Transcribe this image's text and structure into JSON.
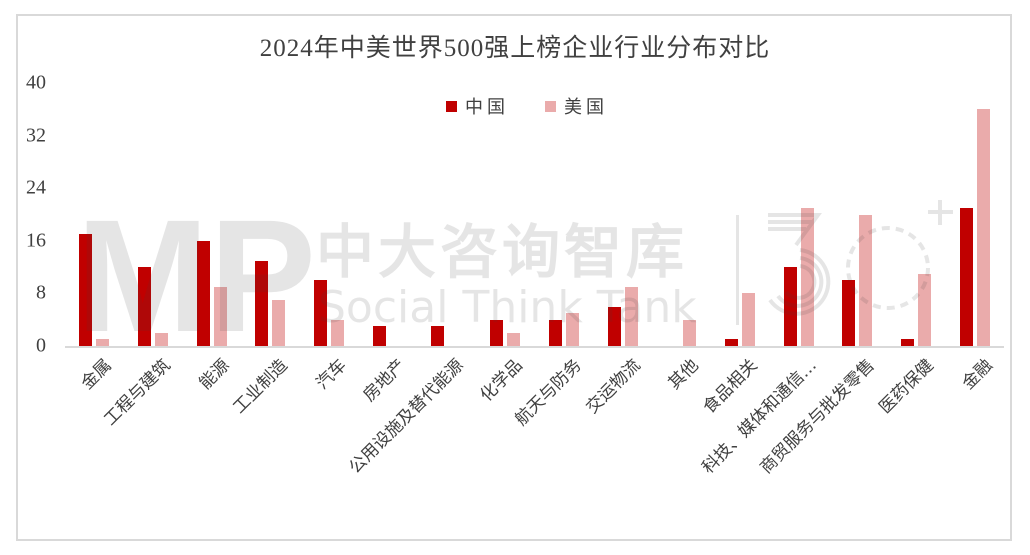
{
  "chart_data": {
    "type": "bar",
    "title": "2024年中美世界500强上榜企业行业分布对比",
    "xlabel": "",
    "ylabel": "",
    "ylim": [
      0,
      40
    ],
    "yticks": [
      0,
      8,
      16,
      24,
      32,
      40
    ],
    "grid": false,
    "legend_position": "top",
    "categories": [
      "金属",
      "工程与建筑",
      "能源",
      "工业制造",
      "汽车",
      "房地产",
      "公用设施及替代能源",
      "化学品",
      "航天与防务",
      "交运物流",
      "其他",
      "食品相关",
      "科技、媒体和通信…",
      "商贸服务与批发零售",
      "医药保健",
      "金融"
    ],
    "series": [
      {
        "name": "中国",
        "color": "#C00000",
        "values": [
          17,
          12,
          16,
          13,
          10,
          3,
          3,
          4,
          4,
          6,
          0,
          1,
          12,
          10,
          1,
          21
        ]
      },
      {
        "name": "美国",
        "color": "#EAABAB",
        "values": [
          1,
          2,
          9,
          7,
          4,
          0,
          0,
          2,
          5,
          9,
          4,
          8,
          21,
          20,
          11,
          36
        ]
      }
    ]
  },
  "legend": {
    "china_label": "中国",
    "us_label": "美国",
    "china_color": "#C00000",
    "us_color": "#EAABAB"
  },
  "watermark": {
    "logo_text": "MP",
    "cn_text": "中大咨询智库",
    "en_text": "Social Think Tank",
    "anniversary": "30+"
  }
}
